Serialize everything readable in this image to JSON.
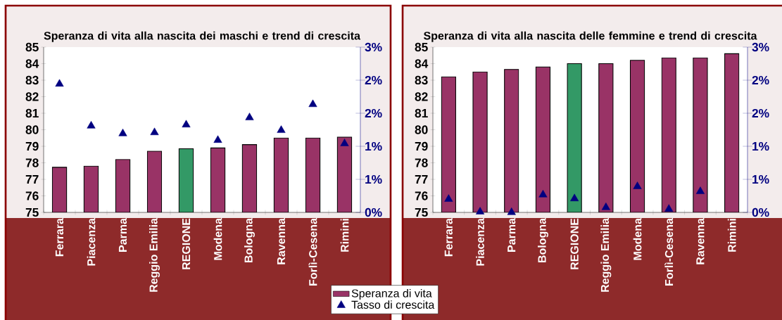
{
  "chart_data": [
    {
      "type": "bar",
      "title": "Speranza di vita alla nascita dei maschi e trend di crescita",
      "categories": [
        "Ferrara",
        "Piacenza",
        "Parma",
        "Reggio Emilia",
        "REGIONE",
        "Modena",
        "Bologna",
        "Ravenna",
        "Forlì-Cesena",
        "Rimini"
      ],
      "series": [
        {
          "name": "Speranza di vita",
          "colors": [
            "#993366",
            "#993366",
            "#993366",
            "#993366",
            "#339966",
            "#993366",
            "#993366",
            "#993366",
            "#993366",
            "#993366"
          ],
          "values": [
            77.73,
            77.8,
            78.2,
            78.7,
            78.85,
            78.9,
            79.1,
            79.5,
            79.5,
            79.55
          ]
        },
        {
          "name": "Tasso di crescita",
          "type": "scatter",
          "axis": "y2",
          "color": "#000080",
          "values": [
            2.33,
            1.57,
            1.43,
            1.45,
            1.59,
            1.31,
            1.72,
            1.49,
            1.96,
            1.25
          ]
        }
      ],
      "ylim": [
        75,
        85
      ],
      "yticks": [
        75,
        76,
        77,
        78,
        79,
        80,
        81,
        82,
        83,
        84,
        85
      ],
      "y2lim": [
        0,
        3
      ],
      "y2ticks": [
        {
          "value": 0,
          "label": "0%"
        },
        {
          "value": 0.6,
          "label": "1%"
        },
        {
          "value": 1.2,
          "label": "1%"
        },
        {
          "value": 1.8,
          "label": "2%"
        },
        {
          "value": 2.4,
          "label": "2%"
        },
        {
          "value": 3,
          "label": "3%"
        }
      ],
      "marker": "triangle",
      "legend": "bottom right"
    },
    {
      "type": "bar",
      "title": "Speranza di vita alla nascita delle femmine e trend di crescita",
      "categories": [
        "Ferrara",
        "Piacenza",
        "Parma",
        "Bologna",
        "REGIONE",
        "Reggio Emilia",
        "Modena",
        "Forlì-Cesena",
        "Ravenna",
        "Rimini"
      ],
      "series": [
        {
          "colors": [
            "#993366",
            "#993366",
            "#993366",
            "#993366",
            "#339966",
            "#993366",
            "#993366",
            "#993366",
            "#993366",
            "#993366"
          ],
          "values": [
            83.2,
            83.5,
            83.65,
            83.8,
            84.0,
            84.0,
            84.2,
            84.35,
            84.35,
            84.6
          ]
        },
        {
          "type": "scatter",
          "axis": "y2",
          "color": "#000080",
          "values": [
            0.24,
            0.01,
            0.0,
            0.32,
            0.25,
            0.09,
            0.47,
            0.06,
            0.38,
            null
          ]
        }
      ],
      "ylim": [
        75,
        85
      ],
      "yticks": [
        75,
        76,
        77,
        78,
        79,
        80,
        81,
        82,
        83,
        84,
        85
      ],
      "y2lim": [
        0,
        3
      ],
      "y2ticks": [
        {
          "value": 0,
          "label": "0%"
        },
        {
          "value": 0.6,
          "label": "1%"
        },
        {
          "value": 1.2,
          "label": "1%"
        },
        {
          "value": 1.8,
          "label": "2%"
        },
        {
          "value": 2.4,
          "label": "2%"
        },
        {
          "value": 3,
          "label": "3%"
        }
      ],
      "marker": "triangle"
    }
  ]
}
